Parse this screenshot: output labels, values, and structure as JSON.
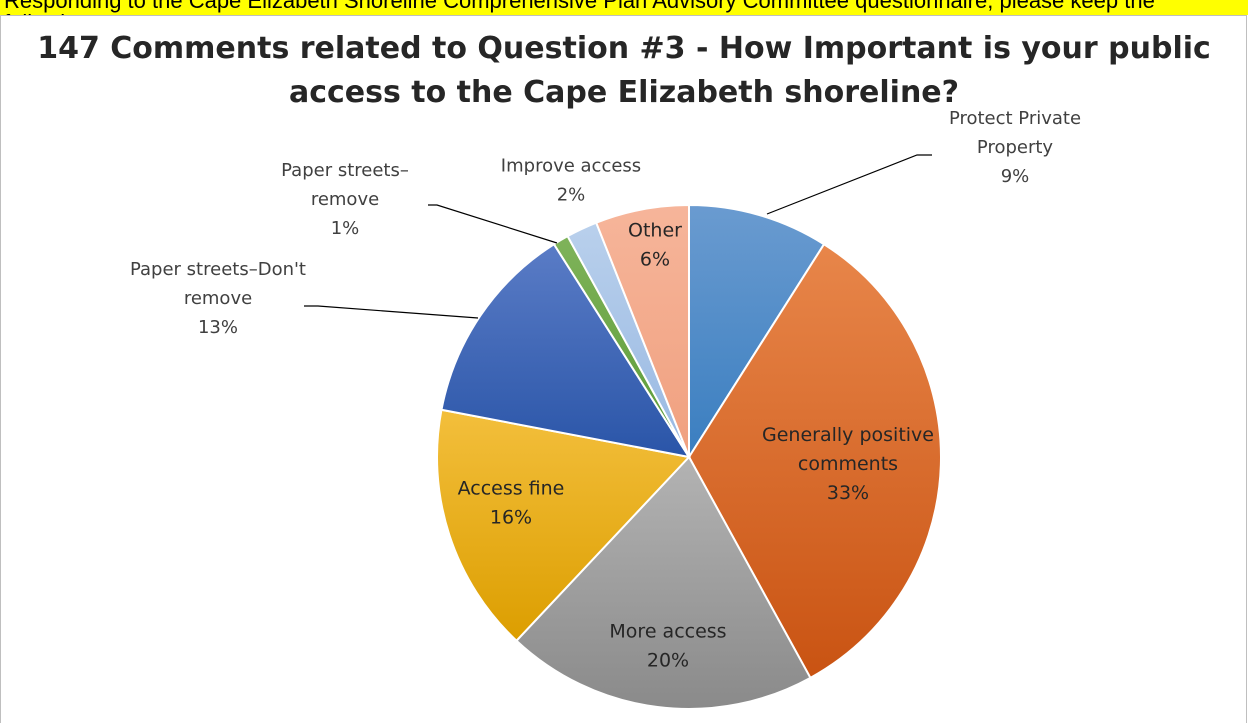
{
  "banner_text": "Responding to the Cape Elizabeth Shoreline Comprehensive Plan Advisory Committee questionnaire, please keep the following",
  "chart_data": {
    "type": "pie",
    "title": "147 Comments related to Question #3 - How Important is your public access to the Cape Elizabeth shoreline?",
    "start_angle_deg": 0,
    "direction": "clockwise",
    "slices": [
      {
        "label": "Protect Private Property",
        "value": 9,
        "display": "9%",
        "color_light": "#6a9bd0",
        "color_dark": "#3a7ec0",
        "label_lines": [
          "Protect Private",
          "Property"
        ],
        "outside": true
      },
      {
        "label": "Generally positive comments",
        "value": 33,
        "display": "33%",
        "color_light": "#e8864a",
        "color_dark": "#c95312",
        "label_lines": [
          "Generally positive",
          "comments"
        ],
        "outside": false
      },
      {
        "label": "More access",
        "value": 20,
        "display": "20%",
        "color_light": "#b3b3b3",
        "color_dark": "#8a8a8a",
        "label_lines": [
          "More access"
        ],
        "outside": false
      },
      {
        "label": "Access fine",
        "value": 16,
        "display": "16%",
        "color_light": "#f3bf3c",
        "color_dark": "#dc9e00",
        "label_lines": [
          "Access fine"
        ],
        "outside": false
      },
      {
        "label": "Paper streets–Don't remove",
        "value": 13,
        "display": "13%",
        "color_light": "#5a7cc6",
        "color_dark": "#2a55a8",
        "label_lines": [
          "Paper streets–Don't",
          "remove"
        ],
        "outside": true
      },
      {
        "label": "Paper streets–remove",
        "value": 1,
        "display": "1%",
        "color_light": "#7fb35a",
        "color_dark": "#5a9a36",
        "label_lines": [
          "Paper streets–",
          "remove"
        ],
        "outside": true
      },
      {
        "label": "Improve access",
        "value": 2,
        "display": "2%",
        "color_light": "#b9d0ec",
        "color_dark": "#98b8e2",
        "label_lines": [
          "Improve access"
        ],
        "outside": true
      },
      {
        "label": "Other",
        "value": 6,
        "display": "6%",
        "color_light": "#f6b59a",
        "color_dark": "#f0a07f",
        "label_lines": [
          "Other"
        ],
        "outside": false
      }
    ]
  }
}
